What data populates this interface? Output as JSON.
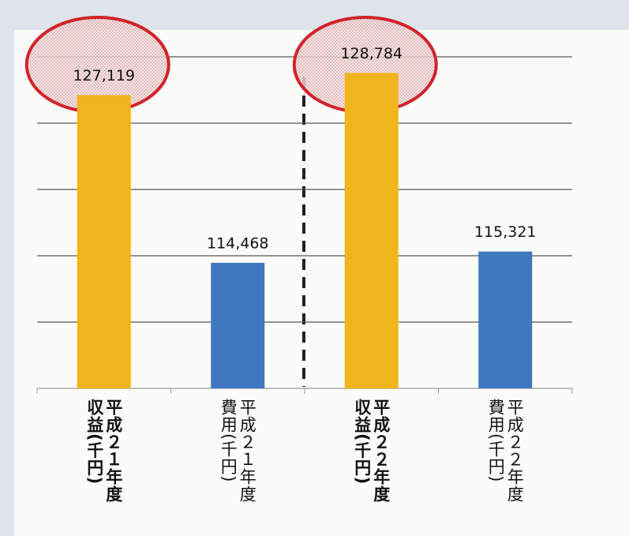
{
  "chart_data": {
    "type": "bar",
    "categories": [
      "平成２１年度収益(千円)",
      "平成２１年度費用(千円)",
      "平成２２年度収益(千円)",
      "平成２２年度費用(千円)"
    ],
    "values": [
      127119,
      114468,
      128784,
      115321
    ],
    "value_labels": [
      "127,119",
      "114,468",
      "128,784",
      "115,321"
    ],
    "colors": [
      "#f0b41c",
      "#3f78bf",
      "#f0b41c",
      "#3f78bf"
    ],
    "ylim": [
      105000,
      130000
    ],
    "yticks": [
      105000,
      110000,
      115000,
      120000,
      125000,
      130000
    ],
    "grid": true
  }
}
